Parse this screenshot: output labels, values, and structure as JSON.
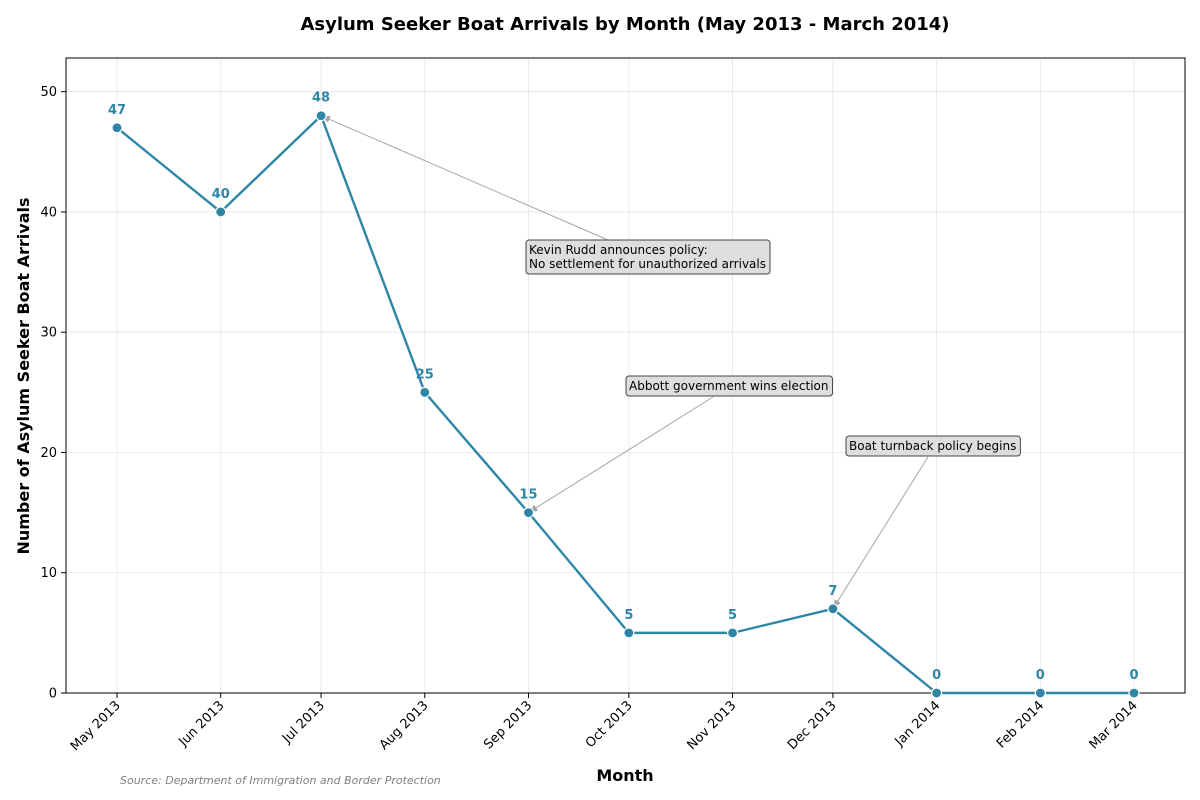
{
  "chart_data": {
    "type": "line",
    "title": "Asylum Seeker Boat Arrivals by Month (May 2013 - March 2014)",
    "xlabel": "Month",
    "ylabel": "Number of Asylum Seeker Boat Arrivals",
    "categories": [
      "May 2013",
      "Jun 2013",
      "Jul 2013",
      "Aug 2013",
      "Sep 2013",
      "Oct 2013",
      "Nov 2013",
      "Dec 2013",
      "Jan 2014",
      "Feb 2014",
      "Mar 2014"
    ],
    "x_dates": [
      "2013-05-01",
      "2013-06-01",
      "2013-07-01",
      "2013-08-01",
      "2013-09-01",
      "2013-10-01",
      "2013-11-01",
      "2013-12-01",
      "2014-01-01",
      "2014-02-01",
      "2014-03-01"
    ],
    "values": [
      47,
      40,
      48,
      25,
      15,
      5,
      5,
      7,
      0,
      0,
      0
    ],
    "data_labels": [
      "47",
      "40",
      "48",
      "25",
      "15",
      "5",
      "5",
      "7",
      "0",
      "0",
      "0"
    ],
    "ylim": [
      0,
      52.8
    ],
    "yticks": [
      0,
      10,
      20,
      30,
      40,
      50
    ],
    "ytick_labels": [
      "0",
      "10",
      "20",
      "30",
      "40",
      "50"
    ],
    "grid": true,
    "line_color": "#2e86a6",
    "annotations": [
      {
        "lines": [
          "Kevin Rudd announces policy:",
          "No settlement for unauthorized arrivals"
        ],
        "target_index": 2
      },
      {
        "lines": [
          "Abbott government wins election"
        ],
        "target_index": 4
      },
      {
        "lines": [
          "Boat turnback policy begins"
        ],
        "target_index": 7
      }
    ],
    "source": "Source: Department of Immigration and Border Protection"
  }
}
